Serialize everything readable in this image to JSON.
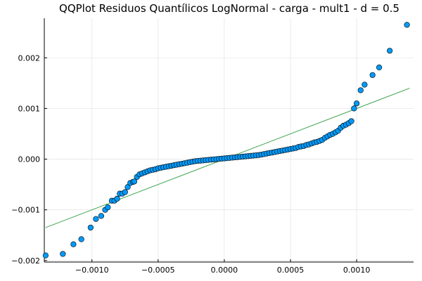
{
  "chart_data": {
    "type": "scatter",
    "title": "QQPlot Residuos Quantílicos LogNormal - carga - mult1 - d = 0.5",
    "xlabel": "",
    "ylabel": "",
    "xlim": [
      -0.00136,
      0.00143
    ],
    "ylim": [
      -0.00203,
      0.00278
    ],
    "grid": true,
    "xticks": [
      -0.001,
      -0.0005,
      0.0,
      0.0005,
      0.001
    ],
    "xtick_labels": [
      "−0.0010",
      "−0.0005",
      "0.0000",
      "0.0005",
      "0.0010"
    ],
    "yticks": [
      -0.002,
      -0.001,
      0.0,
      0.001,
      0.002
    ],
    "ytick_labels": [
      "−0.002",
      "−0.001",
      "0.000",
      "0.001",
      "0.002"
    ],
    "colors": {
      "points": "#009af9",
      "line": "#3da44d"
    },
    "reference_line": {
      "x": [
        -0.00135,
        0.0014
      ],
      "y": [
        -0.00135,
        0.0014
      ]
    },
    "series": [
      {
        "values": [
          [
            -0.00135,
            -0.0019
          ],
          [
            -0.00122,
            -0.00187
          ],
          [
            -0.00114,
            -0.00168
          ],
          [
            -0.00108,
            -0.00158
          ],
          [
            -0.00101,
            -0.00135
          ],
          [
            -0.00097,
            -0.00118
          ],
          [
            -0.00093,
            -0.00112
          ],
          [
            -0.0009,
            -0.001
          ],
          [
            -0.00088,
            -0.00095
          ],
          [
            -0.00085,
            -0.00082
          ],
          [
            -0.00083,
            -0.00082
          ],
          [
            -0.00081,
            -0.00078
          ],
          [
            -0.00079,
            -0.00068
          ],
          [
            -0.00077,
            -0.00068
          ],
          [
            -0.00075,
            -0.00065
          ],
          [
            -0.00073,
            -0.00055
          ],
          [
            -0.00071,
            -0.00047
          ],
          [
            -0.00069,
            -0.00045
          ],
          [
            -0.00068,
            -0.00044
          ],
          [
            -0.00066,
            -0.00035
          ],
          [
            -0.00064,
            -0.0003
          ],
          [
            -0.00062,
            -0.00028
          ],
          [
            -0.0006,
            -0.00026
          ],
          [
            -0.00058,
            -0.00024
          ],
          [
            -0.00056,
            -0.00022
          ],
          [
            -0.00054,
            -0.00021
          ],
          [
            -0.00052,
            -0.0002
          ],
          [
            -0.0005,
            -0.00018
          ],
          [
            -0.00048,
            -0.00017
          ],
          [
            -0.00046,
            -0.00016
          ],
          [
            -0.00044,
            -0.00015
          ],
          [
            -0.00042,
            -0.00014
          ],
          [
            -0.0004,
            -0.00013
          ],
          [
            -0.00038,
            -0.00012
          ],
          [
            -0.00036,
            -0.00011
          ],
          [
            -0.00034,
            -0.0001
          ],
          [
            -0.00032,
            -9e-05
          ],
          [
            -0.0003,
            -8e-05
          ],
          [
            -0.00028,
            -7e-05
          ],
          [
            -0.00026,
            -6e-05
          ],
          [
            -0.00024,
            -5e-05
          ],
          [
            -0.00022,
            -4e-05
          ],
          [
            -0.0002,
            -3.5e-05
          ],
          [
            -0.00018,
            -3e-05
          ],
          [
            -0.00016,
            -2.5e-05
          ],
          [
            -0.00014,
            -2e-05
          ],
          [
            -0.00012,
            -1.5e-05
          ],
          [
            -0.0001,
            -1e-05
          ],
          [
            -8e-05,
            -5e-06
          ],
          [
            -6e-05,
            0.0
          ],
          [
            -4e-05,
            5e-06
          ],
          [
            -2e-05,
            1e-05
          ],
          [
            0.0,
            1.5e-05
          ],
          [
            2e-05,
            2e-05
          ],
          [
            4e-05,
            2.5e-05
          ],
          [
            6e-05,
            3e-05
          ],
          [
            8e-05,
            3.5e-05
          ],
          [
            0.0001,
            4e-05
          ],
          [
            0.00012,
            4.5e-05
          ],
          [
            0.00014,
            5e-05
          ],
          [
            0.00016,
            5.5e-05
          ],
          [
            0.00018,
            6e-05
          ],
          [
            0.0002,
            6.5e-05
          ],
          [
            0.00022,
            7e-05
          ],
          [
            0.00024,
            7.5e-05
          ],
          [
            0.00026,
            8e-05
          ],
          [
            0.00028,
            9e-05
          ],
          [
            0.0003,
            0.0001
          ],
          [
            0.00032,
            0.00011
          ],
          [
            0.00034,
            0.00012
          ],
          [
            0.00036,
            0.00013
          ],
          [
            0.00038,
            0.00014
          ],
          [
            0.0004,
            0.00015
          ],
          [
            0.00042,
            0.00016
          ],
          [
            0.00044,
            0.00017
          ],
          [
            0.00046,
            0.00018
          ],
          [
            0.00048,
            0.00019
          ],
          [
            0.0005,
            0.0002
          ],
          [
            0.00052,
            0.00021
          ],
          [
            0.00054,
            0.00022
          ],
          [
            0.00056,
            0.00024
          ],
          [
            0.00058,
            0.00025
          ],
          [
            0.0006,
            0.00026
          ],
          [
            0.00062,
            0.00028
          ],
          [
            0.00064,
            0.00029
          ],
          [
            0.00066,
            0.00031
          ],
          [
            0.00068,
            0.00033
          ],
          [
            0.0007,
            0.00034
          ],
          [
            0.00072,
            0.00036
          ],
          [
            0.00074,
            0.00038
          ],
          [
            0.00076,
            0.00042
          ],
          [
            0.00078,
            0.00045
          ],
          [
            0.0008,
            0.00048
          ],
          [
            0.00082,
            0.0005
          ],
          [
            0.00084,
            0.00053
          ],
          [
            0.00086,
            0.00056
          ],
          [
            0.00088,
            0.00062
          ],
          [
            0.0009,
            0.00066
          ],
          [
            0.00092,
            0.00068
          ],
          [
            0.00094,
            0.00071
          ],
          [
            0.00096,
            0.00075
          ],
          [
            0.00098,
            0.001
          ],
          [
            0.001,
            0.0011
          ],
          [
            0.00103,
            0.00136
          ],
          [
            0.00106,
            0.00147
          ],
          [
            0.00112,
            0.00166
          ],
          [
            0.00117,
            0.00181
          ],
          [
            0.00125,
            0.00214
          ],
          [
            0.00138,
            0.00265
          ]
        ]
      }
    ]
  }
}
